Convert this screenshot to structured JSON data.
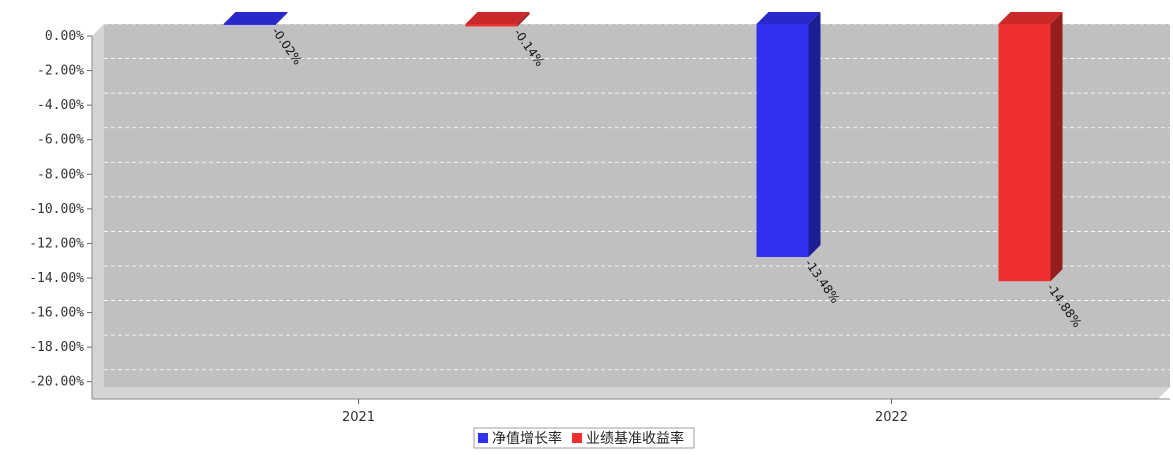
{
  "chart_data": {
    "type": "bar",
    "title": "",
    "categories": [
      "2021",
      "2022"
    ],
    "series": [
      {
        "name": "净值增长率",
        "values": [
          -0.02,
          -13.48
        ],
        "labels": [
          "-0.02%",
          "-13.48%"
        ],
        "color": "#3030ee"
      },
      {
        "name": "业绩基准收益率",
        "values": [
          -0.14,
          -14.88
        ],
        "labels": [
          "-0.14%",
          "-14.88%"
        ],
        "color": "#ee3030"
      }
    ],
    "ylim": [
      -21,
      0
    ],
    "yticks": [
      0,
      -2,
      -4,
      -6,
      -8,
      -10,
      -12,
      -14,
      -16,
      -18,
      -20
    ],
    "ytick_labels": [
      "0.00%",
      "-2.00%",
      "-4.00%",
      "-6.00%",
      "-8.00%",
      "-10.00%",
      "-12.00%",
      "-14.00%",
      "-16.00%",
      "-18.00%",
      "-20.00%"
    ],
    "grid": true,
    "legend_position": "bottom-center",
    "xlabel": "",
    "ylabel": "",
    "plot_background": "#c0c0c0"
  }
}
